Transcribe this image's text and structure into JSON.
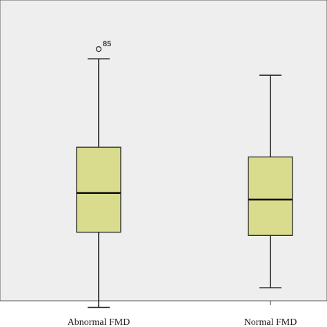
{
  "chart_data": {
    "type": "box",
    "title": "",
    "xlabel": "",
    "ylabel": "",
    "categories": [
      "Abnormal FMD",
      "Normal FMD"
    ],
    "ylim": [
      0,
      100
    ],
    "boxes": [
      {
        "category": "Abnormal FMD",
        "whisker_low": 6,
        "q1": 29,
        "median": 41,
        "q3": 55,
        "whisker_high": 82,
        "outliers": [
          {
            "value": 85,
            "label": "85"
          }
        ]
      },
      {
        "category": "Normal FMD",
        "whisker_low": 12,
        "q1": 28,
        "median": 39,
        "q3": 52,
        "whisker_high": 77,
        "outliers": []
      }
    ],
    "box_fill": "#d8dc8c",
    "plot_background": "#eeeeee",
    "grid": false
  }
}
